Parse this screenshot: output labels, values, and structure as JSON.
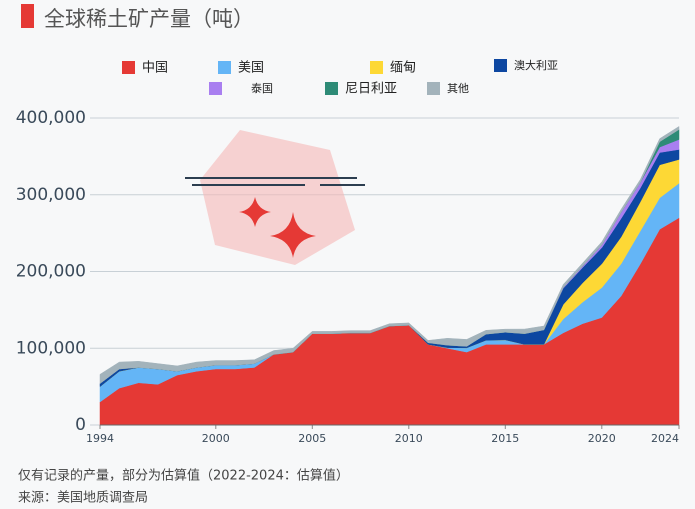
{
  "chart_data": {
    "type": "area",
    "stacked": true,
    "title": "全球稀土矿产量（吨）",
    "x": [
      1994,
      1995,
      1996,
      1997,
      1998,
      1999,
      2000,
      2001,
      2002,
      2003,
      2004,
      2005,
      2006,
      2007,
      2008,
      2009,
      2010,
      2011,
      2012,
      2013,
      2014,
      2015,
      2016,
      2017,
      2018,
      2019,
      2020,
      2021,
      2022,
      2023,
      2024
    ],
    "series": [
      {
        "name": "中国",
        "color": "#e53935",
        "values": [
          30000,
          48000,
          55000,
          53000,
          65000,
          70000,
          73000,
          73000,
          75000,
          92000,
          95000,
          119000,
          119000,
          120000,
          120000,
          129000,
          130000,
          105000,
          100000,
          95000,
          105000,
          105000,
          105000,
          105000,
          120000,
          132000,
          140000,
          168000,
          210000,
          255000,
          270000
        ]
      },
      {
        "name": "美国",
        "color": "#64b5f6",
        "values": [
          20000,
          22000,
          20000,
          20000,
          5000,
          5000,
          5000,
          5000,
          5000,
          0,
          0,
          0,
          0,
          0,
          0,
          0,
          0,
          0,
          800,
          5500,
          5400,
          5900,
          0,
          0,
          18000,
          28000,
          39000,
          42000,
          43000,
          41000,
          45000
        ]
      },
      {
        "name": "缅甸",
        "color": "#fdd835",
        "values": [
          0,
          0,
          0,
          0,
          0,
          0,
          0,
          0,
          0,
          0,
          0,
          0,
          0,
          0,
          0,
          0,
          0,
          0,
          0,
          0,
          0,
          0,
          0,
          0,
          19000,
          25000,
          31000,
          35000,
          38000,
          43000,
          31000
        ]
      },
      {
        "name": "澳大利亚",
        "color": "#0d47a1",
        "values": [
          4000,
          3000,
          0,
          0,
          0,
          0,
          0,
          0,
          0,
          0,
          0,
          0,
          0,
          0,
          0,
          0,
          0,
          2200,
          3200,
          2000,
          8000,
          10000,
          14000,
          19000,
          21000,
          20000,
          21000,
          24000,
          18000,
          16000,
          13000
        ]
      },
      {
        "name": "泰国",
        "color": "#a97ff0",
        "values": [
          0,
          0,
          0,
          0,
          0,
          0,
          0,
          0,
          0,
          0,
          0,
          0,
          0,
          0,
          0,
          0,
          0,
          0,
          0,
          0,
          0,
          0,
          0,
          0,
          1000,
          1800,
          3600,
          8000,
          7100,
          7100,
          13000
        ]
      },
      {
        "name": "尼日利亚",
        "color": "#2e8b77",
        "values": [
          0,
          0,
          0,
          0,
          0,
          0,
          0,
          0,
          0,
          0,
          0,
          0,
          0,
          0,
          0,
          0,
          0,
          0,
          0,
          0,
          0,
          0,
          0,
          0,
          0,
          0,
          0,
          0,
          0,
          7000,
          13000
        ]
      },
      {
        "name": "其他",
        "color": "#a3b3bb",
        "values": [
          12000,
          9000,
          8000,
          7000,
          7000,
          7000,
          6000,
          6000,
          5000,
          5000,
          5000,
          3000,
          3000,
          3000,
          3000,
          3000,
          3000,
          3000,
          9000,
          9000,
          5000,
          4000,
          6000,
          5000,
          4000,
          4000,
          4000,
          4000,
          4000,
          4000,
          4000
        ]
      }
    ],
    "xlim": [
      1994,
      2024
    ],
    "xticks": [
      1994,
      2000,
      2005,
      2010,
      2015,
      2020,
      2024
    ],
    "ylim": [
      0,
      400000
    ],
    "yticks": [
      0,
      {
        "value": 100000,
        "label": "100,000"
      },
      {
        "value": 200000,
        "label": "200,000"
      },
      {
        "value": 300000,
        "label": "300,000"
      },
      {
        "value": 400000,
        "label": "400,000"
      }
    ],
    "grid": true,
    "annotations": [
      "仅有记录的产量，部分为估算值（2022-2024：估算值）",
      "来源：美国地质调查局"
    ]
  }
}
